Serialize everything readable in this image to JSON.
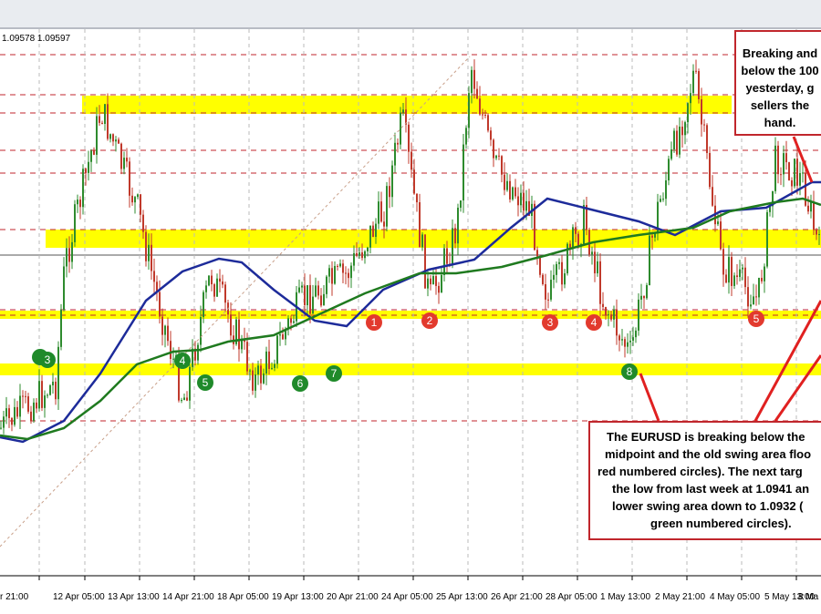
{
  "header": {
    "price_text": "1.09578 1.09597"
  },
  "x_axis": {
    "labels": [
      "r 21:00",
      "12 Apr 05:00",
      "13 Apr 13:00",
      "14 Apr 21:00",
      "18 Apr 05:00",
      "19 Apr 13:00",
      "20 Apr 21:00",
      "24 Apr 05:00",
      "25 Apr 13:00",
      "26 Apr 21:00",
      "28 Apr 05:00",
      "1 May 13:00",
      "2 May 21:00",
      "4 May 05:00",
      "5 May 13:00",
      "8 Ma"
    ]
  },
  "red_circles": [
    "1",
    "2",
    "3",
    "4",
    "5"
  ],
  "green_circles": [
    "3",
    "4",
    "5",
    "6",
    "7",
    "8"
  ],
  "annotations": [
    {
      "lines": [
        "Breaking and",
        "below the 100",
        "yesterday, g",
        "sellers the",
        "hand."
      ]
    },
    {
      "lines": [
        "The EURUSD is breaking below the",
        "midpoint and the old swing area floo",
        "red numbered circles). The next targ",
        "the low from last week at 1.0941 an",
        "lower swing area down to 1.0932 (",
        "green numbered circles)."
      ]
    }
  ]
}
